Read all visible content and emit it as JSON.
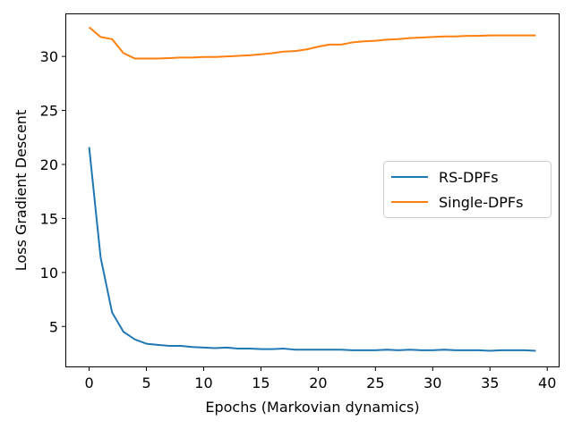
{
  "chart_data": {
    "type": "line",
    "title": "",
    "xlabel": "Epochs (Markovian dynamics)",
    "ylabel": "Loss Gradient Descent",
    "xlim": [
      -2,
      41
    ],
    "ylim": [
      1.3,
      33.9
    ],
    "xticks": [
      0,
      5,
      10,
      15,
      20,
      25,
      30,
      35,
      40
    ],
    "yticks": [
      5,
      10,
      15,
      20,
      25,
      30
    ],
    "grid": false,
    "legend_position": "center-right",
    "x": [
      0,
      1,
      2,
      3,
      4,
      5,
      6,
      7,
      8,
      9,
      10,
      11,
      12,
      13,
      14,
      15,
      16,
      17,
      18,
      19,
      20,
      21,
      22,
      23,
      24,
      25,
      26,
      27,
      28,
      29,
      30,
      31,
      32,
      33,
      34,
      35,
      36,
      37,
      38,
      39
    ],
    "series": [
      {
        "name": "RS-DPFs",
        "color": "#1f77b4",
        "values": [
          21.6,
          11.4,
          6.3,
          4.5,
          3.8,
          3.4,
          3.3,
          3.2,
          3.2,
          3.1,
          3.05,
          3.0,
          3.05,
          2.95,
          2.95,
          2.9,
          2.9,
          2.95,
          2.85,
          2.85,
          2.85,
          2.85,
          2.85,
          2.8,
          2.8,
          2.8,
          2.85,
          2.8,
          2.85,
          2.8,
          2.8,
          2.85,
          2.8,
          2.8,
          2.8,
          2.75,
          2.8,
          2.8,
          2.8,
          2.75
        ]
      },
      {
        "name": "Single-DPFs",
        "color": "#ff7f0e",
        "values": [
          32.7,
          31.8,
          31.6,
          30.3,
          29.8,
          29.8,
          29.8,
          29.85,
          29.9,
          29.9,
          29.95,
          29.95,
          30.0,
          30.05,
          30.1,
          30.2,
          30.3,
          30.45,
          30.5,
          30.65,
          30.9,
          31.1,
          31.1,
          31.3,
          31.4,
          31.45,
          31.55,
          31.6,
          31.7,
          31.75,
          31.8,
          31.85,
          31.85,
          31.9,
          31.9,
          31.95,
          31.95,
          31.95,
          31.95,
          31.95
        ]
      }
    ]
  }
}
